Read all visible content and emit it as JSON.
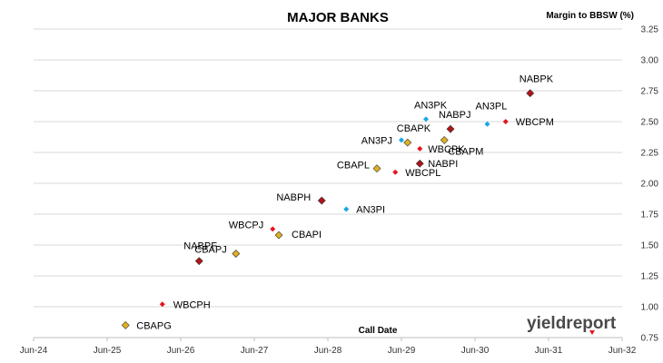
{
  "chart_data": {
    "type": "scatter",
    "title": "MAJOR BANKS",
    "ylabel": "Margin to BBSW (%)",
    "xlabel": "Call Date",
    "ylim": [
      0.75,
      3.25
    ],
    "y_ticks": [
      "0.75",
      "1.00",
      "1.25",
      "1.50",
      "1.75",
      "2.00",
      "2.25",
      "2.50",
      "2.75",
      "3.00",
      "3.25"
    ],
    "x_ticks": [
      "Jun-24",
      "Jun-25",
      "Jun-26",
      "Jun-27",
      "Jun-28",
      "Jun-29",
      "Jun-30",
      "Jun-31",
      "Jun-32"
    ],
    "grid": "horizontal",
    "colors": {
      "red": "#e8141b",
      "darkred": "#b01418",
      "gold": "#e0b020",
      "cyan": "#1aa6e6"
    },
    "points": [
      {
        "label": "CBAPG",
        "x": "Sep-25",
        "y": 0.85,
        "color": "gold"
      },
      {
        "label": "WBCPH",
        "x": "Mar-26",
        "y": 1.02,
        "color": "red"
      },
      {
        "label": "NABPF",
        "x": "Sep-26",
        "y": 1.37,
        "color": "darkred"
      },
      {
        "label": "CBAPJ",
        "x": "Mar-27",
        "y": 1.43,
        "color": "gold"
      },
      {
        "label": "WBCPJ",
        "x": "Sep-27",
        "y": 1.63,
        "color": "red"
      },
      {
        "label": "CBAPI",
        "x": "Oct-27",
        "y": 1.58,
        "color": "gold"
      },
      {
        "label": "NABPH",
        "x": "May-28",
        "y": 1.86,
        "color": "darkred"
      },
      {
        "label": "AN3PI",
        "x": "Sep-28",
        "y": 1.79,
        "color": "cyan"
      },
      {
        "label": "CBAPL",
        "x": "Feb-29",
        "y": 2.12,
        "color": "gold"
      },
      {
        "label": "WBCPL",
        "x": "May-29",
        "y": 2.09,
        "color": "red"
      },
      {
        "label": "AN3PJ",
        "x": "Jun-29",
        "y": 2.35,
        "color": "cyan"
      },
      {
        "label": "CBAPK",
        "x": "Jul-29",
        "y": 2.33,
        "color": "gold"
      },
      {
        "label": "WBCPK",
        "x": "Sep-29",
        "y": 2.28,
        "color": "red"
      },
      {
        "label": "NABPI",
        "x": "Sep-29",
        "y": 2.16,
        "color": "darkred"
      },
      {
        "label": "AN3PK",
        "x": "Oct-29",
        "y": 2.52,
        "color": "cyan"
      },
      {
        "label": "CBAPM",
        "x": "Jan-30",
        "y": 2.35,
        "color": "gold"
      },
      {
        "label": "NABPJ",
        "x": "Feb-30",
        "y": 2.44,
        "color": "darkred"
      },
      {
        "label": "AN3PL",
        "x": "Aug-30",
        "y": 2.48,
        "color": "cyan"
      },
      {
        "label": "WBCPM",
        "x": "Nov-30",
        "y": 2.5,
        "color": "red"
      },
      {
        "label": "NABPK",
        "x": "Mar-31",
        "y": 2.73,
        "color": "darkred"
      }
    ]
  },
  "brand": {
    "name": "yieldreport"
  }
}
